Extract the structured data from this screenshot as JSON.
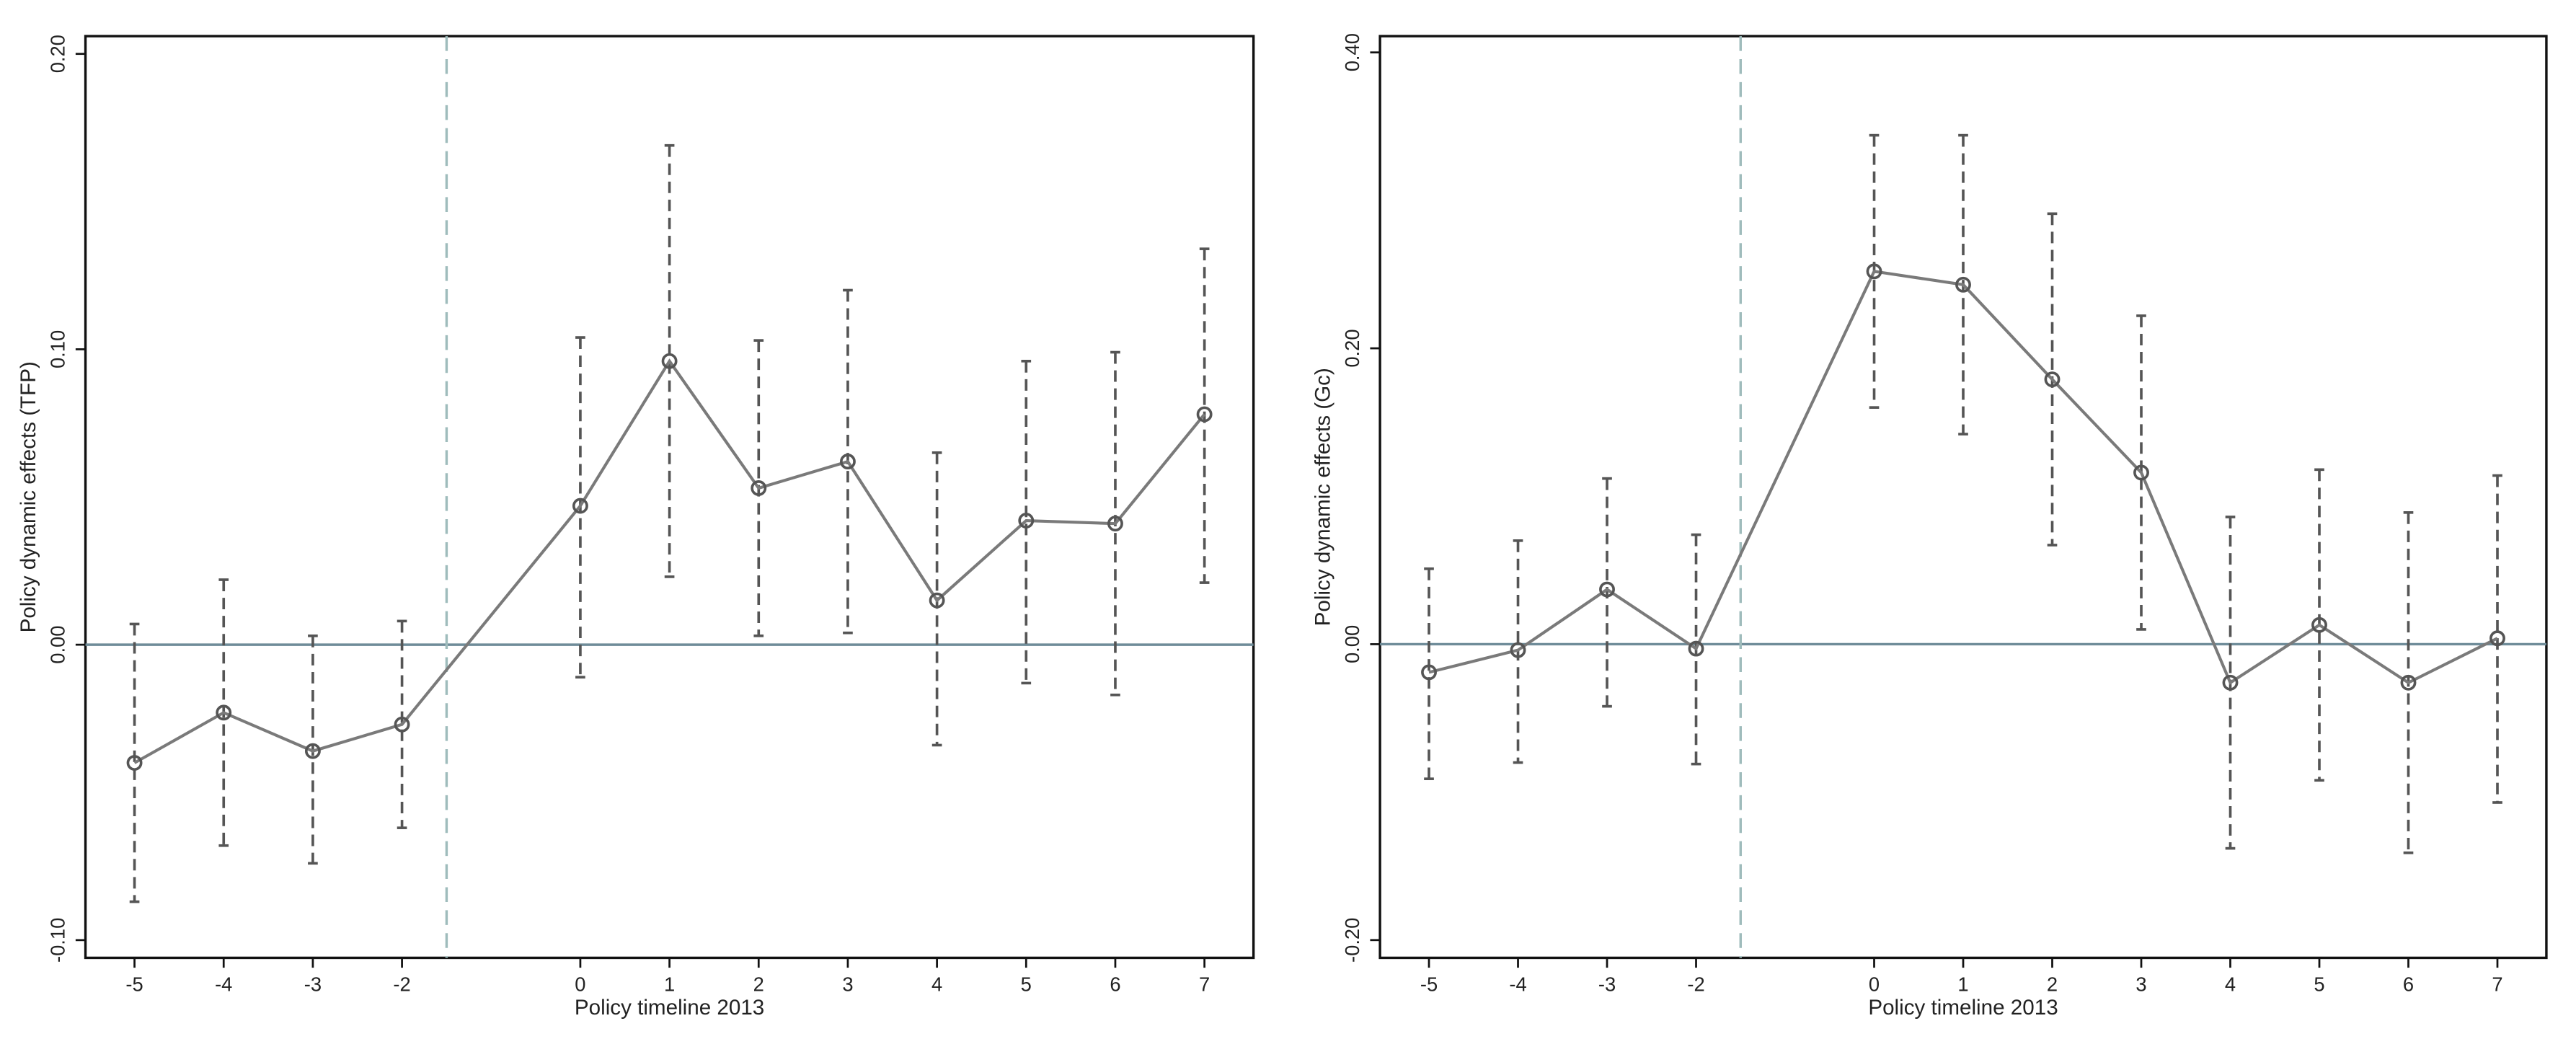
{
  "chart_data": [
    {
      "type": "line",
      "ylabel": "Policy dynamic effects (TFP)",
      "xlabel": "Policy timeline 2013",
      "x": [
        -5,
        -4,
        -3,
        -2,
        0,
        1,
        2,
        3,
        4,
        5,
        6,
        7
      ],
      "series": [
        {
          "color": "#7a7a7a",
          "values": [
            -0.04,
            -0.023,
            -0.036,
            -0.027,
            0.047,
            0.096,
            0.053,
            0.062,
            0.015,
            0.042,
            0.041,
            0.078
          ],
          "ci_upper": [
            0.007,
            0.022,
            0.003,
            0.008,
            0.104,
            0.169,
            0.103,
            0.12,
            0.065,
            0.096,
            0.099,
            0.134
          ],
          "ci_lower": [
            -0.087,
            -0.068,
            -0.074,
            -0.062,
            -0.011,
            0.023,
            0.003,
            0.004,
            -0.034,
            -0.013,
            -0.017,
            0.021
          ]
        }
      ],
      "xlim": [
        -5.55,
        7.55
      ],
      "xticks": [
        -5,
        -4,
        -3,
        -2,
        0,
        1,
        2,
        3,
        4,
        5,
        6,
        7
      ],
      "ylim": [
        -0.106,
        0.206
      ],
      "yticks": [
        {
          "value": -0.1,
          "label": "-0.10"
        },
        {
          "value": 0,
          "label": "0.00"
        },
        {
          "value": 0.1,
          "label": "0.10"
        },
        {
          "value": 0.2,
          "label": "0.20"
        }
      ],
      "hline": 0,
      "vline": -1.5
    },
    {
      "type": "line",
      "ylabel": "Policy dynamic effects (Gc)",
      "xlabel": "Policy timeline 2013",
      "x": [
        -5,
        -4,
        -3,
        -2,
        0,
        1,
        2,
        3,
        4,
        5,
        6,
        7
      ],
      "series": [
        {
          "color": "#7a7a7a",
          "values": [
            -0.019,
            -0.004,
            0.037,
            -0.003,
            0.252,
            0.243,
            0.179,
            0.116,
            -0.026,
            0.013,
            -0.026,
            0.004
          ],
          "ci_upper": [
            0.051,
            0.07,
            0.112,
            0.074,
            0.344,
            0.344,
            0.291,
            0.222,
            0.086,
            0.118,
            0.089,
            0.114
          ],
          "ci_lower": [
            -0.091,
            -0.08,
            -0.042,
            -0.081,
            0.16,
            0.142,
            0.067,
            0.01,
            -0.138,
            -0.092,
            -0.141,
            -0.107
          ]
        }
      ],
      "xlim": [
        -5.55,
        7.55
      ],
      "xticks": [
        -5,
        -4,
        -3,
        -2,
        0,
        1,
        2,
        3,
        4,
        5,
        6,
        7
      ],
      "ylim": [
        -0.212,
        0.411
      ],
      "yticks": [
        {
          "value": -0.2,
          "label": "-0.20"
        },
        {
          "value": 0,
          "label": "0.00"
        },
        {
          "value": 0.2,
          "label": "0.20"
        },
        {
          "value": 0.4,
          "label": "0.40"
        }
      ],
      "hline": 0,
      "vline": -1.5
    }
  ]
}
